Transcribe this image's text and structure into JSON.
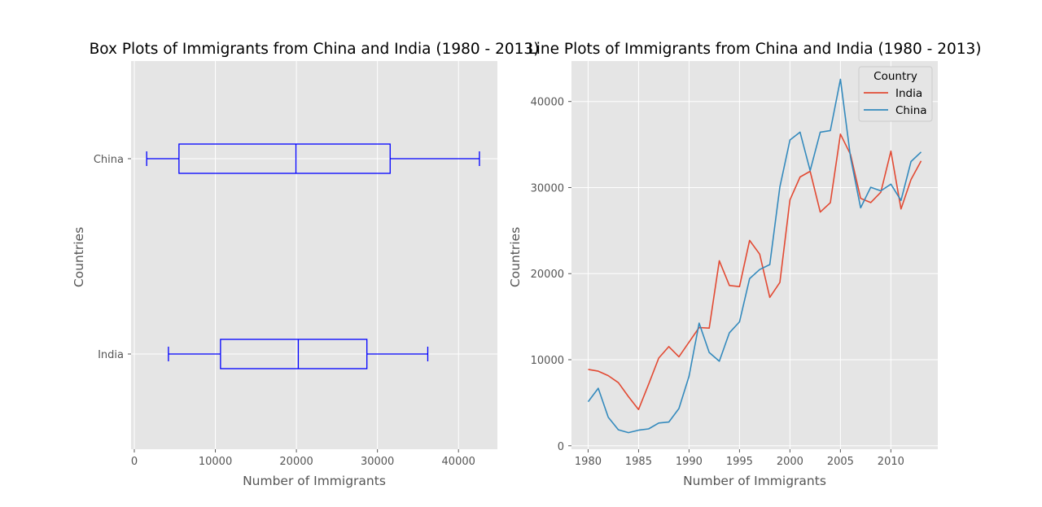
{
  "colors": {
    "axes_bg": "#e5e5e5",
    "grid": "#ffffff",
    "box": "#0000ff",
    "tick": "#555555"
  },
  "chart_data": [
    {
      "type": "box",
      "orientation": "horizontal",
      "title": "Box Plots of Immigrants from China and India (1980 - 2013)",
      "xlabel": "Number of Immigrants",
      "ylabel": "Countries",
      "xlim": [
        -400,
        44800
      ],
      "x_ticks": [
        0,
        10000,
        20000,
        30000,
        40000
      ],
      "categories": [
        "India",
        "China"
      ],
      "boxes": [
        {
          "name": "India",
          "whisker_low": 4211,
          "q1": 10637,
          "median": 20235,
          "q3": 28699,
          "whisker_high": 36210
        },
        {
          "name": "China",
          "whisker_low": 1527,
          "q1": 5512,
          "median": 19945,
          "q3": 31568,
          "whisker_high": 42584
        }
      ],
      "grid": true
    },
    {
      "type": "line",
      "title": "Line Plots of Immigrants from China and India (1980 - 2013)",
      "xlabel": "Number of Immigrants",
      "ylabel": "Countries",
      "xlim": [
        1978.35,
        2014.65
      ],
      "ylim": [
        -400,
        44700
      ],
      "x_ticks": [
        1980,
        1985,
        1990,
        1995,
        2000,
        2005,
        2010
      ],
      "y_ticks": [
        0,
        10000,
        20000,
        30000,
        40000
      ],
      "x": [
        1980,
        1981,
        1982,
        1983,
        1984,
        1985,
        1986,
        1987,
        1988,
        1989,
        1990,
        1991,
        1992,
        1993,
        1994,
        1995,
        1996,
        1997,
        1998,
        1999,
        2000,
        2001,
        2002,
        2003,
        2004,
        2005,
        2006,
        2007,
        2008,
        2009,
        2010,
        2011,
        2012,
        2013
      ],
      "series": [
        {
          "name": "India",
          "color": "#e24a33",
          "values": [
            8880,
            8670,
            8147,
            7338,
            5704,
            4211,
            7150,
            10189,
            11522,
            10343,
            12041,
            13734,
            13673,
            21496,
            18620,
            18489,
            23859,
            22268,
            17241,
            18974,
            28572,
            31223,
            31889,
            27155,
            28235,
            36210,
            33848,
            28742,
            28261,
            29456,
            34235,
            27509,
            30933,
            33087
          ]
        },
        {
          "name": "China",
          "color": "#348abd",
          "values": [
            5123,
            6682,
            3308,
            1863,
            1527,
            1816,
            1960,
            2643,
            2758,
            4323,
            8076,
            14255,
            10846,
            9817,
            13128,
            14398,
            19415,
            20475,
            21049,
            30069,
            35529,
            36434,
            31961,
            36439,
            36619,
            42584,
            33518,
            27642,
            30037,
            29622,
            30391,
            28502,
            33024,
            34129
          ]
        }
      ],
      "legend": {
        "title": "Country",
        "placement": "top-right"
      },
      "grid": true
    }
  ]
}
